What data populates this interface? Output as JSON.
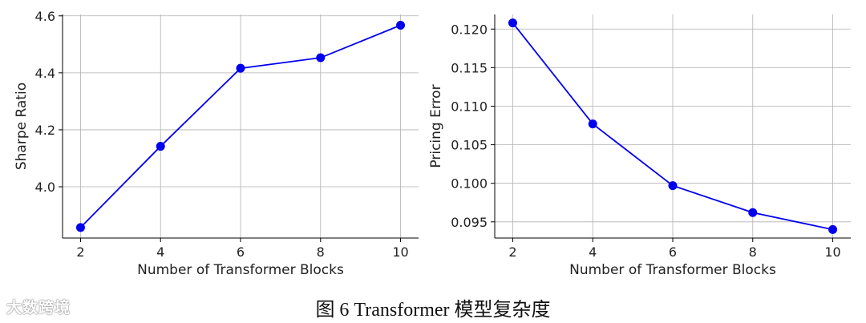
{
  "chart_data": [
    {
      "type": "line",
      "xlabel": "Number of Transformer Blocks",
      "ylabel": "Sharpe Ratio",
      "x": [
        2,
        4,
        6,
        8,
        10
      ],
      "series": [
        {
          "values": [
            3.857,
            4.142,
            4.416,
            4.453,
            4.567
          ]
        }
      ],
      "xticks": [
        "2",
        "4",
        "6",
        "8",
        "10"
      ],
      "yticks": [
        "4.0",
        "4.2",
        "4.4",
        "4.6"
      ],
      "ytick_values": [
        4.0,
        4.2,
        4.4,
        4.6
      ],
      "xlim": [
        1.55,
        10.45
      ],
      "ylim": [
        3.82,
        4.605
      ],
      "grid": true,
      "color": "#0000ee"
    },
    {
      "type": "line",
      "xlabel": "Number of Transformer Blocks",
      "ylabel": "Pricing Error",
      "x": [
        2,
        4,
        6,
        8,
        10
      ],
      "series": [
        {
          "values": [
            0.1208,
            0.1077,
            0.0997,
            0.0962,
            0.094
          ]
        }
      ],
      "xticks": [
        "2",
        "4",
        "6",
        "8",
        "10"
      ],
      "yticks": [
        "0.095",
        "0.100",
        "0.105",
        "0.110",
        "0.115",
        "0.120"
      ],
      "ytick_values": [
        0.095,
        0.1,
        0.105,
        0.11,
        0.115,
        0.12
      ],
      "xlim": [
        1.55,
        10.45
      ],
      "ylim": [
        0.0929,
        0.1219
      ],
      "grid": true,
      "color": "#0000ee"
    }
  ],
  "caption": "图  6 Transformer 模型复杂度",
  "watermark": "大数跨境"
}
